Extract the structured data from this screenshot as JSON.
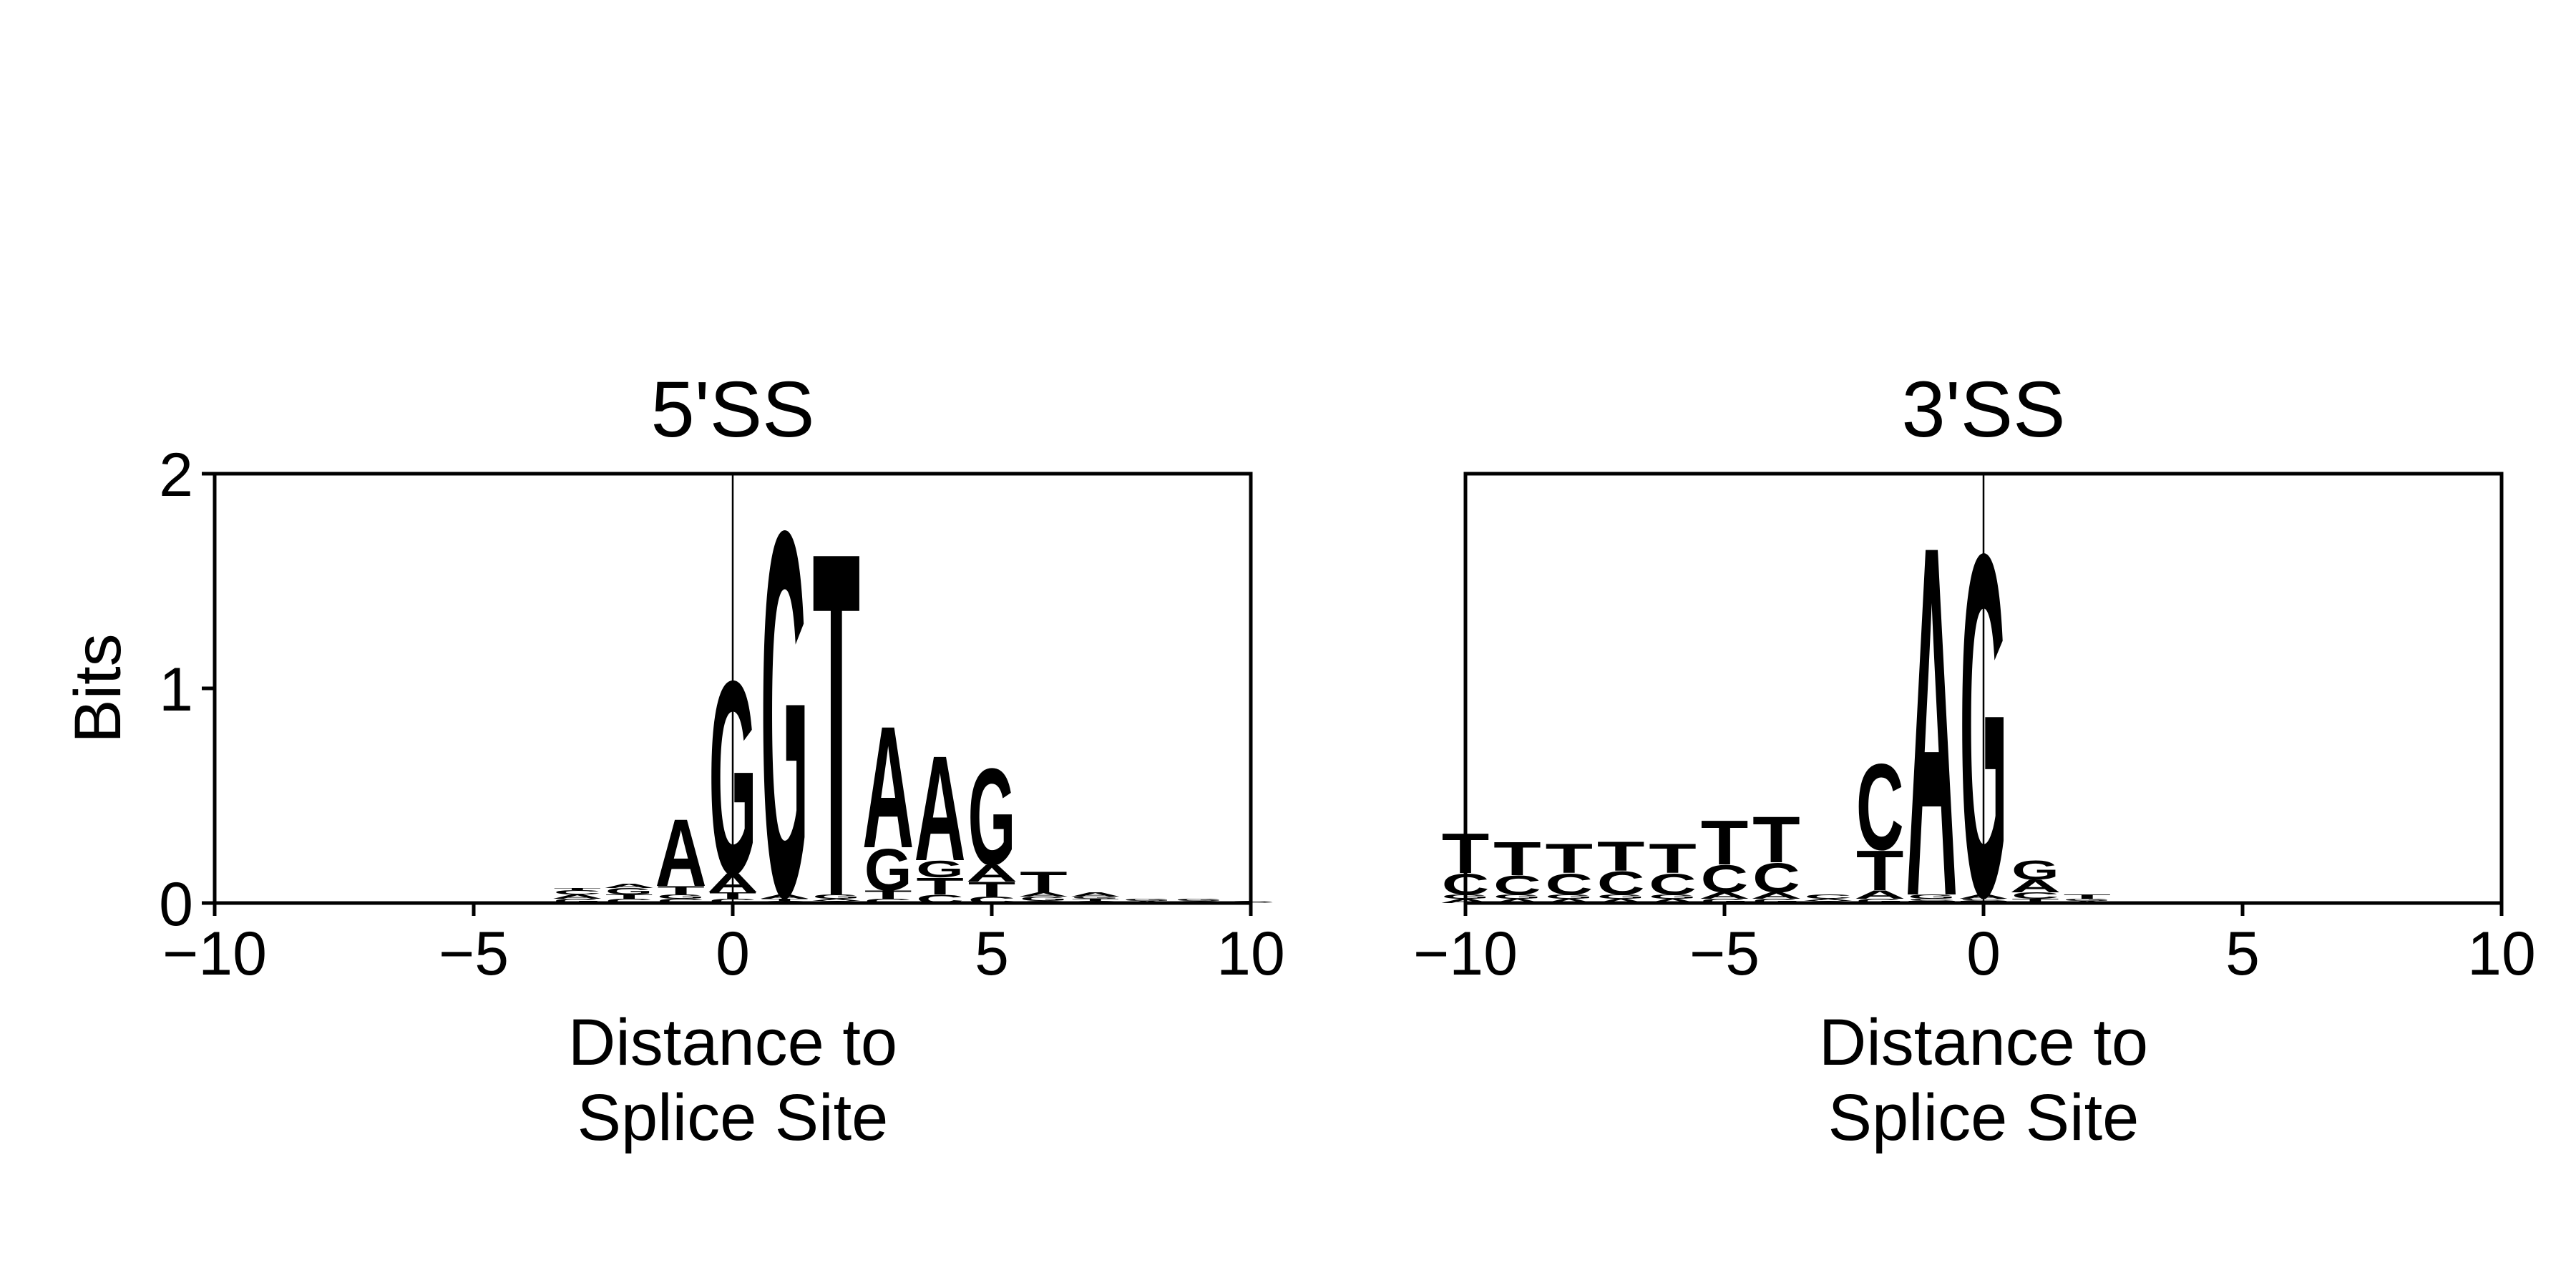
{
  "figure": {
    "ylabel": "Bits"
  },
  "colors": {
    "A": "#2db865",
    "C": "#353b96",
    "G": "#fcdc62",
    "T": "#f90449"
  },
  "chart_data": [
    {
      "type": "sequence-logo",
      "title": "5'SS",
      "xlabel_lines": [
        "Distance to",
        "Splice Site"
      ],
      "ylabel": "Bits",
      "xlim": [
        -10,
        10
      ],
      "ylim": [
        0,
        2
      ],
      "xticks": [
        "−10",
        "−5",
        "0",
        "5",
        "10"
      ],
      "xtick_values": [
        -10,
        -5,
        0,
        5,
        10
      ],
      "yticks": [
        "0",
        "1",
        "2"
      ],
      "ytick_values": [
        0,
        1,
        2
      ],
      "vline_x": 0,
      "positions": [
        {
          "x": -3,
          "letters": [
            [
              "G",
              0.02
            ],
            [
              "A",
              0.02
            ],
            [
              "C",
              0.02
            ],
            [
              "T",
              0.01
            ]
          ]
        },
        {
          "x": -2,
          "letters": [
            [
              "C",
              0.02
            ],
            [
              "T",
              0.02
            ],
            [
              "G",
              0.03
            ],
            [
              "A",
              0.02
            ]
          ]
        },
        {
          "x": -1,
          "letters": [
            [
              "C",
              0.02
            ],
            [
              "G",
              0.02
            ],
            [
              "T",
              0.04
            ],
            [
              "A",
              0.32
            ]
          ]
        },
        {
          "x": 0,
          "letters": [
            [
              "C",
              0.02
            ],
            [
              "T",
              0.03
            ],
            [
              "A",
              0.09
            ],
            [
              "G",
              0.92
            ]
          ]
        },
        {
          "x": 1,
          "letters": [
            [
              "C",
              0.01
            ],
            [
              "T",
              0.01
            ],
            [
              "A",
              0.02
            ],
            [
              "G",
              1.74
            ]
          ]
        },
        {
          "x": 2,
          "letters": [
            [
              "C",
              0.01
            ],
            [
              "A",
              0.01
            ],
            [
              "G",
              0.02
            ],
            [
              "T",
              1.64
            ]
          ]
        },
        {
          "x": 3,
          "letters": [
            [
              "C",
              0.02
            ],
            [
              "T",
              0.04
            ],
            [
              "G",
              0.2
            ],
            [
              "A",
              0.58
            ]
          ]
        },
        {
          "x": 4,
          "letters": [
            [
              "C",
              0.04
            ],
            [
              "T",
              0.08
            ],
            [
              "G",
              0.08
            ],
            [
              "A",
              0.5
            ]
          ]
        },
        {
          "x": 5,
          "letters": [
            [
              "C",
              0.03
            ],
            [
              "T",
              0.07
            ],
            [
              "A",
              0.08
            ],
            [
              "G",
              0.46
            ]
          ]
        },
        {
          "x": 6,
          "letters": [
            [
              "C",
              0.01
            ],
            [
              "G",
              0.02
            ],
            [
              "A",
              0.02
            ],
            [
              "T",
              0.1
            ]
          ]
        },
        {
          "x": 7,
          "letters": [
            [
              "C",
              0.01
            ],
            [
              "T",
              0.01
            ],
            [
              "G",
              0.01
            ],
            [
              "A",
              0.02
            ]
          ]
        },
        {
          "x": 8,
          "letters": [
            [
              "A",
              0.01
            ],
            [
              "G",
              0.01
            ]
          ]
        },
        {
          "x": 9,
          "letters": [
            [
              "C",
              0.01
            ],
            [
              "G",
              0.01
            ]
          ]
        },
        {
          "x": 10,
          "letters": [
            [
              "C",
              0.01
            ]
          ]
        }
      ]
    },
    {
      "type": "sequence-logo",
      "title": "3'SS",
      "xlabel_lines": [
        "Distance to",
        "Splice Site"
      ],
      "xlim": [
        -10,
        10
      ],
      "ylim": [
        0,
        2
      ],
      "xticks": [
        "−10",
        "−5",
        "0",
        "5",
        "10"
      ],
      "xtick_values": [
        -10,
        -5,
        0,
        5,
        10
      ],
      "vline_x": 0,
      "positions": [
        {
          "x": -10,
          "letters": [
            [
              "A",
              0.02
            ],
            [
              "G",
              0.02
            ],
            [
              "C",
              0.1
            ],
            [
              "T",
              0.19
            ]
          ]
        },
        {
          "x": -9,
          "letters": [
            [
              "A",
              0.02
            ],
            [
              "G",
              0.02
            ],
            [
              "C",
              0.09
            ],
            [
              "T",
              0.16
            ]
          ]
        },
        {
          "x": -8,
          "letters": [
            [
              "A",
              0.02
            ],
            [
              "G",
              0.02
            ],
            [
              "C",
              0.1
            ],
            [
              "T",
              0.14
            ]
          ]
        },
        {
          "x": -7,
          "letters": [
            [
              "A",
              0.02
            ],
            [
              "G",
              0.02
            ],
            [
              "C",
              0.11
            ],
            [
              "T",
              0.14
            ]
          ]
        },
        {
          "x": -6,
          "letters": [
            [
              "A",
              0.02
            ],
            [
              "G",
              0.02
            ],
            [
              "C",
              0.1
            ],
            [
              "T",
              0.14
            ]
          ]
        },
        {
          "x": -5,
          "letters": [
            [
              "G",
              0.02
            ],
            [
              "A",
              0.03
            ],
            [
              "C",
              0.13
            ],
            [
              "T",
              0.21
            ]
          ]
        },
        {
          "x": -4,
          "letters": [
            [
              "G",
              0.02
            ],
            [
              "A",
              0.03
            ],
            [
              "C",
              0.14
            ],
            [
              "T",
              0.22
            ]
          ]
        },
        {
          "x": -3,
          "letters": [
            [
              "G",
              0.01
            ],
            [
              "A",
              0.01
            ],
            [
              "C",
              0.02
            ]
          ]
        },
        {
          "x": -2,
          "letters": [
            [
              "G",
              0.02
            ],
            [
              "A",
              0.04
            ],
            [
              "T",
              0.19
            ],
            [
              "C",
              0.41
            ]
          ]
        },
        {
          "x": -1,
          "letters": [
            [
              "T",
              0.01
            ],
            [
              "C",
              0.01
            ],
            [
              "G",
              0.02
            ],
            [
              "A",
              1.67
            ]
          ]
        },
        {
          "x": 0,
          "letters": [
            [
              "T",
              0.01
            ],
            [
              "C",
              0.01
            ],
            [
              "A",
              0.02
            ],
            [
              "G",
              1.63
            ]
          ]
        },
        {
          "x": 1,
          "letters": [
            [
              "T",
              0.02
            ],
            [
              "C",
              0.03
            ],
            [
              "A",
              0.06
            ],
            [
              "G",
              0.09
            ]
          ]
        },
        {
          "x": 2,
          "letters": [
            [
              "A",
              0.01
            ],
            [
              "G",
              0.01
            ],
            [
              "T",
              0.02
            ]
          ]
        }
      ]
    }
  ]
}
